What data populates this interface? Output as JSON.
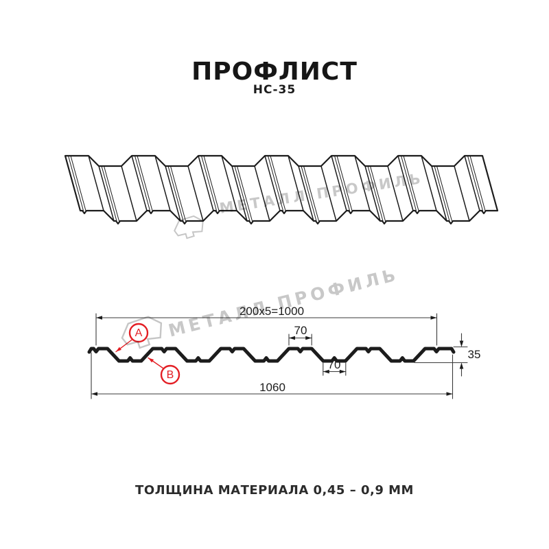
{
  "header": {
    "title": "ПРОФЛИСТ",
    "subtitle": "НС-35"
  },
  "watermark": {
    "brand": "МЕТАЛЛ ПРОФИЛЬ"
  },
  "section": {
    "dimensions": {
      "pitch_total": "200x5=1000",
      "crest_width": "70",
      "valley_width": "70",
      "profile_height": "35",
      "overall_width": "1060"
    },
    "callouts": {
      "a": "A",
      "b": "B"
    }
  },
  "footer": {
    "note": "ТОЛЩИНА МАТЕРИАЛА 0,45 – 0,9 ММ"
  },
  "colors": {
    "line": "#1c1c1c",
    "dim": "#3a3a3a",
    "callout": "#e31e24",
    "watermark": "#c8c8c8"
  }
}
